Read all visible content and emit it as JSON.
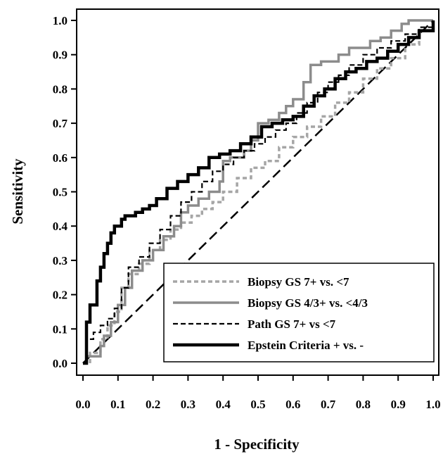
{
  "chart_data": {
    "type": "line",
    "title": "",
    "xlabel": "1 - Specificity",
    "ylabel": "Sensitivity",
    "xlim": [
      0,
      1
    ],
    "ylim": [
      0,
      1
    ],
    "xticks": [
      "0.0",
      "0.1",
      "0.2",
      "0.3",
      "0.4",
      "0.5",
      "0.6",
      "0.7",
      "0.8",
      "0.9",
      "1.0"
    ],
    "yticks": [
      "0.0",
      "0.1",
      "0.2",
      "0.3",
      "0.4",
      "0.5",
      "0.6",
      "0.7",
      "0.8",
      "0.9",
      "1.0"
    ],
    "grid": false,
    "legend_position": "bottom-right",
    "reference_line": {
      "x": [
        0,
        1
      ],
      "y": [
        0,
        1
      ],
      "style": "dashed",
      "color": "#000000"
    },
    "series": [
      {
        "name": "Biopsy GS 7+ vs. <7",
        "color": "#a6a6a6",
        "style": "dashed",
        "x": [
          0,
          0.02,
          0.05,
          0.07,
          0.09,
          0.11,
          0.13,
          0.16,
          0.19,
          0.22,
          0.25,
          0.28,
          0.31,
          0.34,
          0.37,
          0.4,
          0.44,
          0.48,
          0.52,
          0.56,
          0.6,
          0.64,
          0.68,
          0.72,
          0.76,
          0.8,
          0.84,
          0.88,
          0.92,
          0.96,
          1.0
        ],
        "y": [
          0,
          0.03,
          0.07,
          0.11,
          0.15,
          0.22,
          0.26,
          0.29,
          0.33,
          0.36,
          0.39,
          0.41,
          0.43,
          0.45,
          0.47,
          0.5,
          0.54,
          0.57,
          0.59,
          0.63,
          0.66,
          0.69,
          0.72,
          0.76,
          0.79,
          0.83,
          0.86,
          0.89,
          0.93,
          0.97,
          1.0
        ]
      },
      {
        "name": "Biopsy GS 4/3+ vs. <4/3",
        "color": "#8c8c8c",
        "style": "solid",
        "x": [
          0,
          0.01,
          0.03,
          0.05,
          0.06,
          0.08,
          0.1,
          0.12,
          0.14,
          0.17,
          0.2,
          0.23,
          0.26,
          0.28,
          0.3,
          0.33,
          0.36,
          0.39,
          0.4,
          0.42,
          0.46,
          0.48,
          0.5,
          0.53,
          0.56,
          0.58,
          0.6,
          0.63,
          0.65,
          0.68,
          0.7,
          0.73,
          0.76,
          0.79,
          0.82,
          0.85,
          0.88,
          0.91,
          0.93,
          0.96,
          1.0
        ],
        "y": [
          0,
          0.02,
          0.02,
          0.05,
          0.08,
          0.12,
          0.17,
          0.22,
          0.27,
          0.3,
          0.33,
          0.37,
          0.4,
          0.44,
          0.46,
          0.48,
          0.5,
          0.53,
          0.59,
          0.6,
          0.62,
          0.65,
          0.7,
          0.71,
          0.73,
          0.75,
          0.77,
          0.82,
          0.87,
          0.88,
          0.88,
          0.9,
          0.92,
          0.92,
          0.94,
          0.95,
          0.97,
          0.99,
          1.0,
          1.0,
          1.0
        ]
      },
      {
        "name": "Path GS 7+ vs <7",
        "color": "#000000",
        "style": "dashed",
        "x": [
          0,
          0.01,
          0.03,
          0.05,
          0.07,
          0.09,
          0.11,
          0.13,
          0.16,
          0.19,
          0.22,
          0.25,
          0.28,
          0.31,
          0.34,
          0.37,
          0.4,
          0.43,
          0.46,
          0.49,
          0.52,
          0.55,
          0.58,
          0.61,
          0.64,
          0.67,
          0.7,
          0.73,
          0.76,
          0.8,
          0.84,
          0.88,
          0.92,
          0.96,
          1.0
        ],
        "y": [
          0,
          0.07,
          0.09,
          0.11,
          0.13,
          0.16,
          0.22,
          0.28,
          0.31,
          0.35,
          0.39,
          0.43,
          0.47,
          0.5,
          0.53,
          0.56,
          0.58,
          0.6,
          0.62,
          0.64,
          0.66,
          0.68,
          0.7,
          0.73,
          0.76,
          0.79,
          0.82,
          0.84,
          0.87,
          0.9,
          0.92,
          0.94,
          0.96,
          0.98,
          1.0
        ]
      },
      {
        "name": "Epstein Criteria + vs. -",
        "color": "#000000",
        "style": "solid",
        "x": [
          0,
          0.01,
          0.01,
          0.02,
          0.03,
          0.04,
          0.04,
          0.05,
          0.06,
          0.07,
          0.08,
          0.08,
          0.09,
          0.11,
          0.12,
          0.15,
          0.17,
          0.19,
          0.21,
          0.24,
          0.27,
          0.3,
          0.33,
          0.36,
          0.39,
          0.42,
          0.45,
          0.48,
          0.51,
          0.54,
          0.57,
          0.6,
          0.63,
          0.66,
          0.69,
          0.72,
          0.75,
          0.78,
          0.81,
          0.84,
          0.87,
          0.9,
          0.93,
          0.96,
          1.0
        ],
        "y": [
          0,
          0.1,
          0.12,
          0.17,
          0.17,
          0.21,
          0.24,
          0.28,
          0.32,
          0.35,
          0.36,
          0.38,
          0.4,
          0.42,
          0.43,
          0.44,
          0.45,
          0.46,
          0.48,
          0.51,
          0.53,
          0.55,
          0.57,
          0.6,
          0.61,
          0.62,
          0.64,
          0.66,
          0.69,
          0.7,
          0.71,
          0.72,
          0.75,
          0.78,
          0.8,
          0.83,
          0.85,
          0.86,
          0.88,
          0.89,
          0.91,
          0.93,
          0.95,
          0.97,
          1.0
        ]
      }
    ]
  }
}
